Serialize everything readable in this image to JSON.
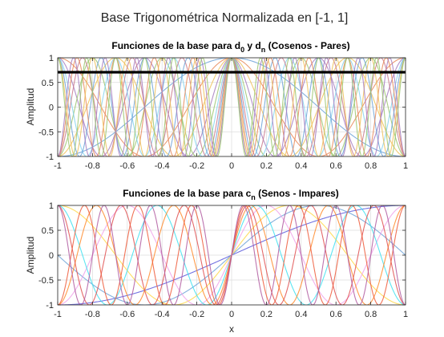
{
  "figure": {
    "title": "Base Trigonométrica Normalizada en [-1, 1]"
  },
  "chart_data": [
    {
      "type": "line",
      "title_parts": {
        "prefix": "Funciones de la base para d",
        "sub0": "0",
        "mid": " y d",
        "subn": "n",
        "suffix": " (Cosenos - Pares)"
      },
      "xlabel": "",
      "ylabel": "Amplitud",
      "xlim": [
        -1,
        1
      ],
      "ylim": [
        -1,
        1
      ],
      "xticks": [
        "-1",
        "-0.8",
        "-0.6",
        "-0.4",
        "-0.2",
        "0",
        "0.2",
        "0.4",
        "0.6",
        "0.8",
        "1"
      ],
      "yticks": [
        "-1",
        "-0.5",
        "0",
        "0.5",
        "1"
      ],
      "grid": true,
      "constant_line": {
        "y": 0.7071,
        "color": "#000000"
      },
      "series_formula": "cos(n*pi*x/2)",
      "n_values": [
        2,
        4,
        6,
        8,
        10,
        12,
        14,
        16,
        18,
        20,
        22,
        24
      ],
      "series_colors": [
        "#6fa3d8",
        "#e8895a",
        "#eec15a",
        "#a67cc0",
        "#9cc670",
        "#86d4ee",
        "#c97b8e",
        "#6fa3d8",
        "#e8895a",
        "#eec15a",
        "#a67cc0",
        "#9cc670"
      ]
    },
    {
      "type": "line",
      "title_parts": {
        "prefix": "Funciones de la base para c",
        "subn": "n",
        "suffix": " (Senos - Impares)"
      },
      "xlabel": "x",
      "ylabel": "Amplitud",
      "xlim": [
        -1,
        1
      ],
      "ylim": [
        -1,
        1
      ],
      "xticks": [
        "-1",
        "-0.8",
        "-0.6",
        "-0.4",
        "-0.2",
        "0",
        "0.2",
        "0.4",
        "0.6",
        "0.8",
        "1"
      ],
      "yticks": [
        "-1",
        "-0.5",
        "0",
        "0.5",
        "1"
      ],
      "grid": true,
      "series_formula": "sin(n*pi*x/2)",
      "n_values": [
        1,
        2,
        3,
        5,
        7,
        9,
        11,
        13,
        15
      ],
      "series_colors": [
        "#5a5adc",
        "#6fa3d8",
        "#ffd84a",
        "#f0a2ea",
        "#40e0f0",
        "#ff8a2a",
        "#e05050",
        "#ee5a3a",
        "#b05aa0"
      ]
    }
  ]
}
